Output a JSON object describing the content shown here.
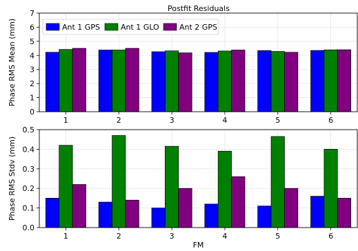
{
  "chart_data": [
    {
      "type": "bar",
      "title": "Postfit Residuals",
      "xlabel": "",
      "ylabel": "Phase RMS Mean (mm)",
      "categories": [
        "1",
        "2",
        "3",
        "4",
        "5",
        "6"
      ],
      "ylim": [
        0,
        7
      ],
      "yticks": [
        "0",
        "1",
        "2",
        "3",
        "4",
        "5",
        "6",
        "7"
      ],
      "grid": true,
      "legend": "top-left",
      "series": [
        {
          "name": "Ant 1 GPS",
          "color": "#0000ff",
          "values": [
            4.22,
            4.38,
            4.26,
            4.21,
            4.34,
            4.35
          ]
        },
        {
          "name": "Ant 1 GLO",
          "color": "#008000",
          "values": [
            4.42,
            4.38,
            4.32,
            4.31,
            4.28,
            4.39
          ]
        },
        {
          "name": "Ant 2 GPS",
          "color": "#800080",
          "values": [
            4.5,
            4.5,
            4.18,
            4.38,
            4.22,
            4.4
          ]
        }
      ]
    },
    {
      "type": "bar",
      "title": "",
      "xlabel": "FM",
      "ylabel": "Phase RMS Stdv (mm)",
      "categories": [
        "1",
        "2",
        "3",
        "4",
        "5",
        "6"
      ],
      "ylim": [
        0,
        0.5
      ],
      "yticks": [
        "0.0",
        "0.1",
        "0.2",
        "0.3",
        "0.4",
        "0.5"
      ],
      "grid": true,
      "series": [
        {
          "name": "Ant 1 GPS",
          "color": "#0000ff",
          "values": [
            0.15,
            0.13,
            0.1,
            0.12,
            0.11,
            0.16
          ]
        },
        {
          "name": "Ant 1 GLO",
          "color": "#008000",
          "values": [
            0.42,
            0.47,
            0.415,
            0.39,
            0.465,
            0.4
          ]
        },
        {
          "name": "Ant 2 GPS",
          "color": "#800080",
          "values": [
            0.22,
            0.14,
            0.2,
            0.26,
            0.2,
            0.15
          ]
        }
      ]
    }
  ]
}
